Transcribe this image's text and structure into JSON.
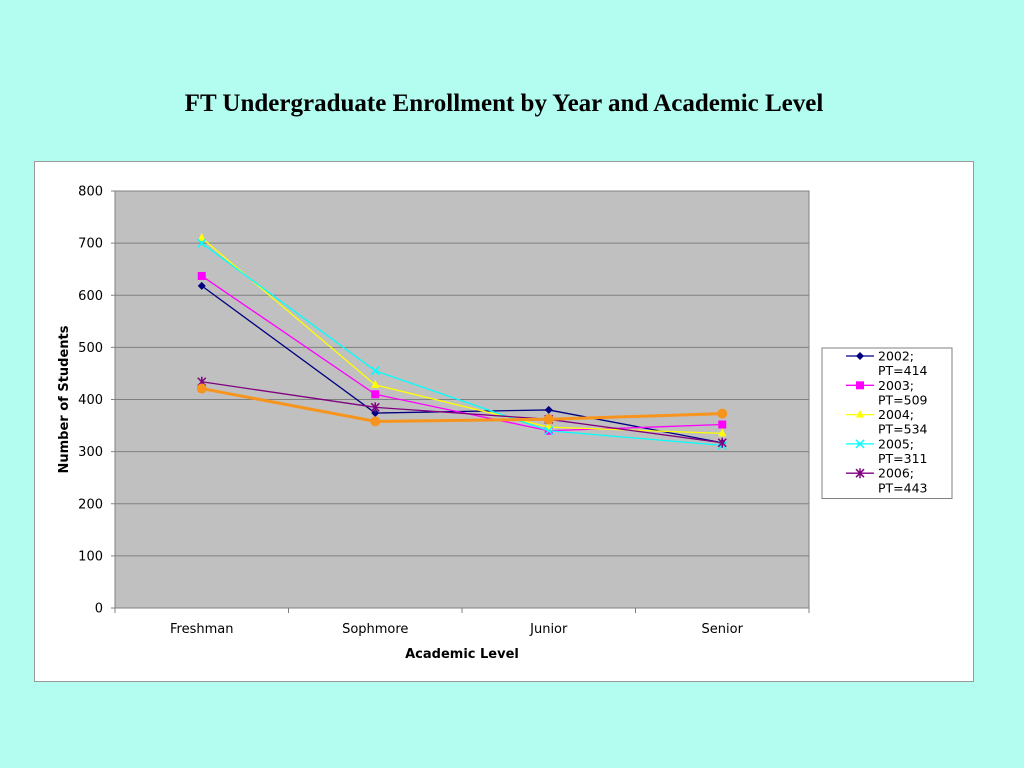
{
  "chart_data": {
    "type": "line",
    "title": "FT Undergraduate Enrollment by Year and Academic Level",
    "xlabel": "Academic Level",
    "ylabel": "Number of Students",
    "categories": [
      "Freshman",
      "Sophmore",
      "Junior",
      "Senior"
    ],
    "ylim": [
      0,
      800
    ],
    "yticks": [
      "0",
      "100",
      "200",
      "300",
      "400",
      "500",
      "600",
      "700",
      "800"
    ],
    "grid": true,
    "plot_background": "#c0c0c0",
    "legend_position": "right",
    "series": [
      {
        "name": "2002; PT=414",
        "legend_lines": [
          "2002;",
          "PT=414"
        ],
        "color": "#000080",
        "marker": "diamond",
        "values": [
          618,
          374,
          380,
          317
        ]
      },
      {
        "name": "2003; PT=509",
        "legend_lines": [
          "2003;",
          "PT=509"
        ],
        "color": "#ff00ff",
        "marker": "square",
        "values": [
          637,
          410,
          340,
          352
        ]
      },
      {
        "name": "2004; PT=534",
        "legend_lines": [
          "2004;",
          "PT=534"
        ],
        "color": "#ffff00",
        "marker": "triangle",
        "values": [
          710,
          428,
          347,
          335
        ]
      },
      {
        "name": "2005; PT=311",
        "legend_lines": [
          "2005;",
          "PT=311"
        ],
        "color": "#00ffff",
        "marker": "x",
        "values": [
          700,
          455,
          340,
          312
        ]
      },
      {
        "name": "2006; PT=443",
        "legend_lines": [
          "2006;",
          "PT=443"
        ],
        "color": "#800080",
        "marker": "star",
        "values": [
          434,
          385,
          362,
          317
        ]
      },
      {
        "color": "#f7941d",
        "marker": "circle",
        "values": [
          421,
          358,
          362,
          373
        ]
      }
    ]
  }
}
